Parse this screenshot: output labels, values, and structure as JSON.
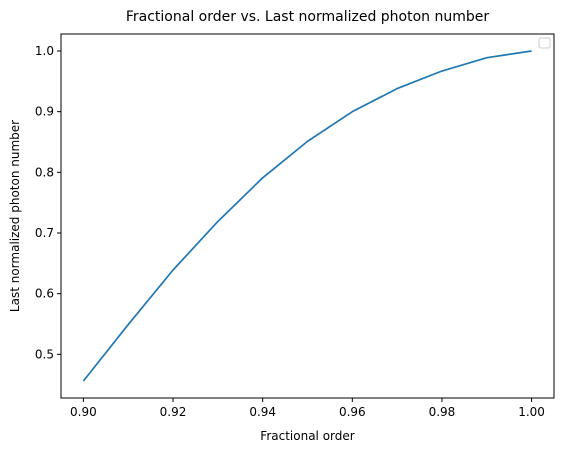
{
  "chart_data": {
    "type": "line",
    "title": "Fractional order vs. Last normalized photon number",
    "xlabel": "Fractional order",
    "ylabel": "Last normalized photon number",
    "xlim": [
      0.895,
      1.005
    ],
    "ylim": [
      0.428,
      1.028
    ],
    "xticks": [
      0.9,
      0.92,
      0.94,
      0.96,
      0.98,
      1.0
    ],
    "xtick_labels": [
      "0.90",
      "0.92",
      "0.94",
      "0.96",
      "0.98",
      "1.00"
    ],
    "yticks": [
      0.5,
      0.6,
      0.7,
      0.8,
      0.9,
      1.0
    ],
    "ytick_labels": [
      "0.5",
      "0.6",
      "0.7",
      "0.8",
      "0.9",
      "1.0"
    ],
    "grid": false,
    "legend": "top-right",
    "series": [
      {
        "color": "#1f77b4",
        "x": [
          0.9,
          0.91,
          0.92,
          0.93,
          0.94,
          0.95,
          0.96,
          0.97,
          0.98,
          0.99,
          1.0
        ],
        "y": [
          0.456,
          0.549,
          0.639,
          0.719,
          0.791,
          0.851,
          0.9,
          0.938,
          0.967,
          0.989,
          1.0
        ]
      }
    ]
  }
}
